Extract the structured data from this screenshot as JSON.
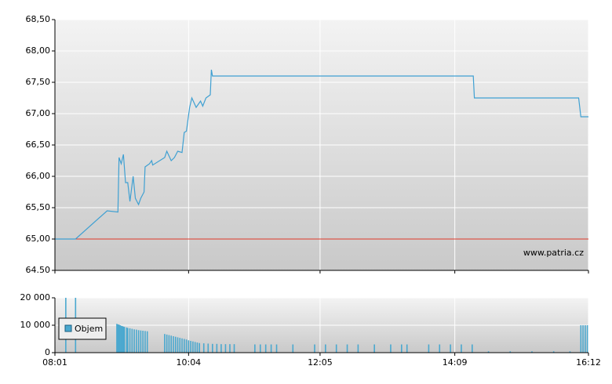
{
  "chart_data": [
    {
      "type": "line",
      "x": [
        "08:01",
        "08:20",
        "08:49",
        "08:59",
        "09:00",
        "09:02",
        "09:04",
        "09:06",
        "09:08",
        "09:10",
        "09:13",
        "09:15",
        "09:18",
        "09:20",
        "09:23",
        "09:24",
        "09:28",
        "09:30",
        "09:31",
        "09:42",
        "09:44",
        "09:48",
        "09:51",
        "09:54",
        "09:58",
        "10:00",
        "10:02",
        "10:05",
        "10:07",
        "10:11",
        "10:15",
        "10:17",
        "10:20",
        "10:24",
        "10:25",
        "10:26",
        "14:26",
        "14:27",
        "16:03",
        "16:05",
        "16:12"
      ],
      "values": [
        65.0,
        65.0,
        65.45,
        65.43,
        66.3,
        66.2,
        66.35,
        65.9,
        65.9,
        65.6,
        66.0,
        65.65,
        65.55,
        65.65,
        65.75,
        66.15,
        66.2,
        66.25,
        66.18,
        66.3,
        66.4,
        66.25,
        66.3,
        66.4,
        66.38,
        66.7,
        66.72,
        67.1,
        67.25,
        67.1,
        67.2,
        67.12,
        67.25,
        67.3,
        67.7,
        67.6,
        67.6,
        67.25,
        67.25,
        66.95,
        66.95
      ],
      "color": "#3fa0d2",
      "reference_line": 65.0,
      "reference_color": "#e03a2a",
      "xlim": [
        "08:01",
        "16:12"
      ],
      "xticks": [
        "08:01",
        "10:04",
        "12:05",
        "14:09",
        "16:12"
      ],
      "ylim": [
        64.5,
        68.5
      ],
      "yticks": [
        {
          "value": 64.5,
          "label": "64.50"
        },
        {
          "value": 65.0,
          "label": "65,00"
        },
        {
          "value": 65.5,
          "label": "65,50"
        },
        {
          "value": 66.0,
          "label": "66,00"
        },
        {
          "value": 66.5,
          "label": "66,50"
        },
        {
          "value": 67.0,
          "label": "67,00"
        },
        {
          "value": 67.5,
          "label": "67,50"
        },
        {
          "value": 68.0,
          "label": "68,00"
        },
        {
          "value": 68.5,
          "label": "68,50"
        }
      ],
      "grid": true,
      "watermark": "www.patria.cz"
    },
    {
      "type": "bar",
      "x": [
        "08:11",
        "08:20",
        "08:58",
        "08:59",
        "09:00",
        "09:01",
        "09:02",
        "09:03",
        "09:04",
        "09:05",
        "09:07",
        "09:08",
        "09:10",
        "09:12",
        "09:14",
        "09:16",
        "09:18",
        "09:20",
        "09:22",
        "09:24",
        "09:26",
        "09:42",
        "09:44",
        "09:46",
        "09:48",
        "09:50",
        "09:52",
        "09:54",
        "09:56",
        "09:58",
        "10:00",
        "10:02",
        "10:04",
        "10:06",
        "10:08",
        "10:10",
        "10:12",
        "10:14",
        "10:18",
        "10:22",
        "10:26",
        "10:30",
        "10:34",
        "10:38",
        "10:42",
        "10:46",
        "11:05",
        "11:10",
        "11:15",
        "11:20",
        "11:25",
        "11:40",
        "12:00",
        "12:10",
        "12:20",
        "12:30",
        "12:40",
        "12:55",
        "13:10",
        "13:20",
        "13:25",
        "13:45",
        "13:55",
        "14:05",
        "14:15",
        "14:25",
        "14:40",
        "15:00",
        "15:20",
        "15:40",
        "15:55",
        "16:05",
        "16:07",
        "16:09",
        "16:11"
      ],
      "series": [
        {
          "name": "Objem",
          "color": "#4aa8cf",
          "values": [
            20000,
            20000,
            10500,
            10300,
            10200,
            10000,
            9800,
            9700,
            9500,
            9400,
            9200,
            9000,
            8900,
            8700,
            8500,
            8400,
            8200,
            8100,
            8000,
            7900,
            7800,
            6800,
            6600,
            6400,
            6200,
            6000,
            5800,
            5600,
            5400,
            5200,
            5000,
            4800,
            4500,
            4300,
            4100,
            3900,
            3700,
            3500,
            3400,
            3300,
            3200,
            3200,
            3100,
            3100,
            3100,
            3100,
            3000,
            3000,
            3000,
            3000,
            3000,
            3000,
            3000,
            3000,
            3000,
            3000,
            3000,
            3000,
            3000,
            3000,
            3000,
            3000,
            3000,
            3000,
            3000,
            3000,
            500,
            500,
            500,
            500,
            500,
            10000,
            10000,
            10000,
            10000
          ]
        }
      ],
      "xlim": [
        "08:01",
        "16:12"
      ],
      "xticks": [
        "08:01",
        "10:04",
        "12:05",
        "14:09",
        "16:12"
      ],
      "ylim": [
        0,
        20000
      ],
      "yticks": [
        0,
        {
          "value": 10000,
          "label": "10 000"
        },
        {
          "value": 20000,
          "label": "20 000"
        }
      ],
      "grid": true,
      "legend": "top-left"
    }
  ]
}
